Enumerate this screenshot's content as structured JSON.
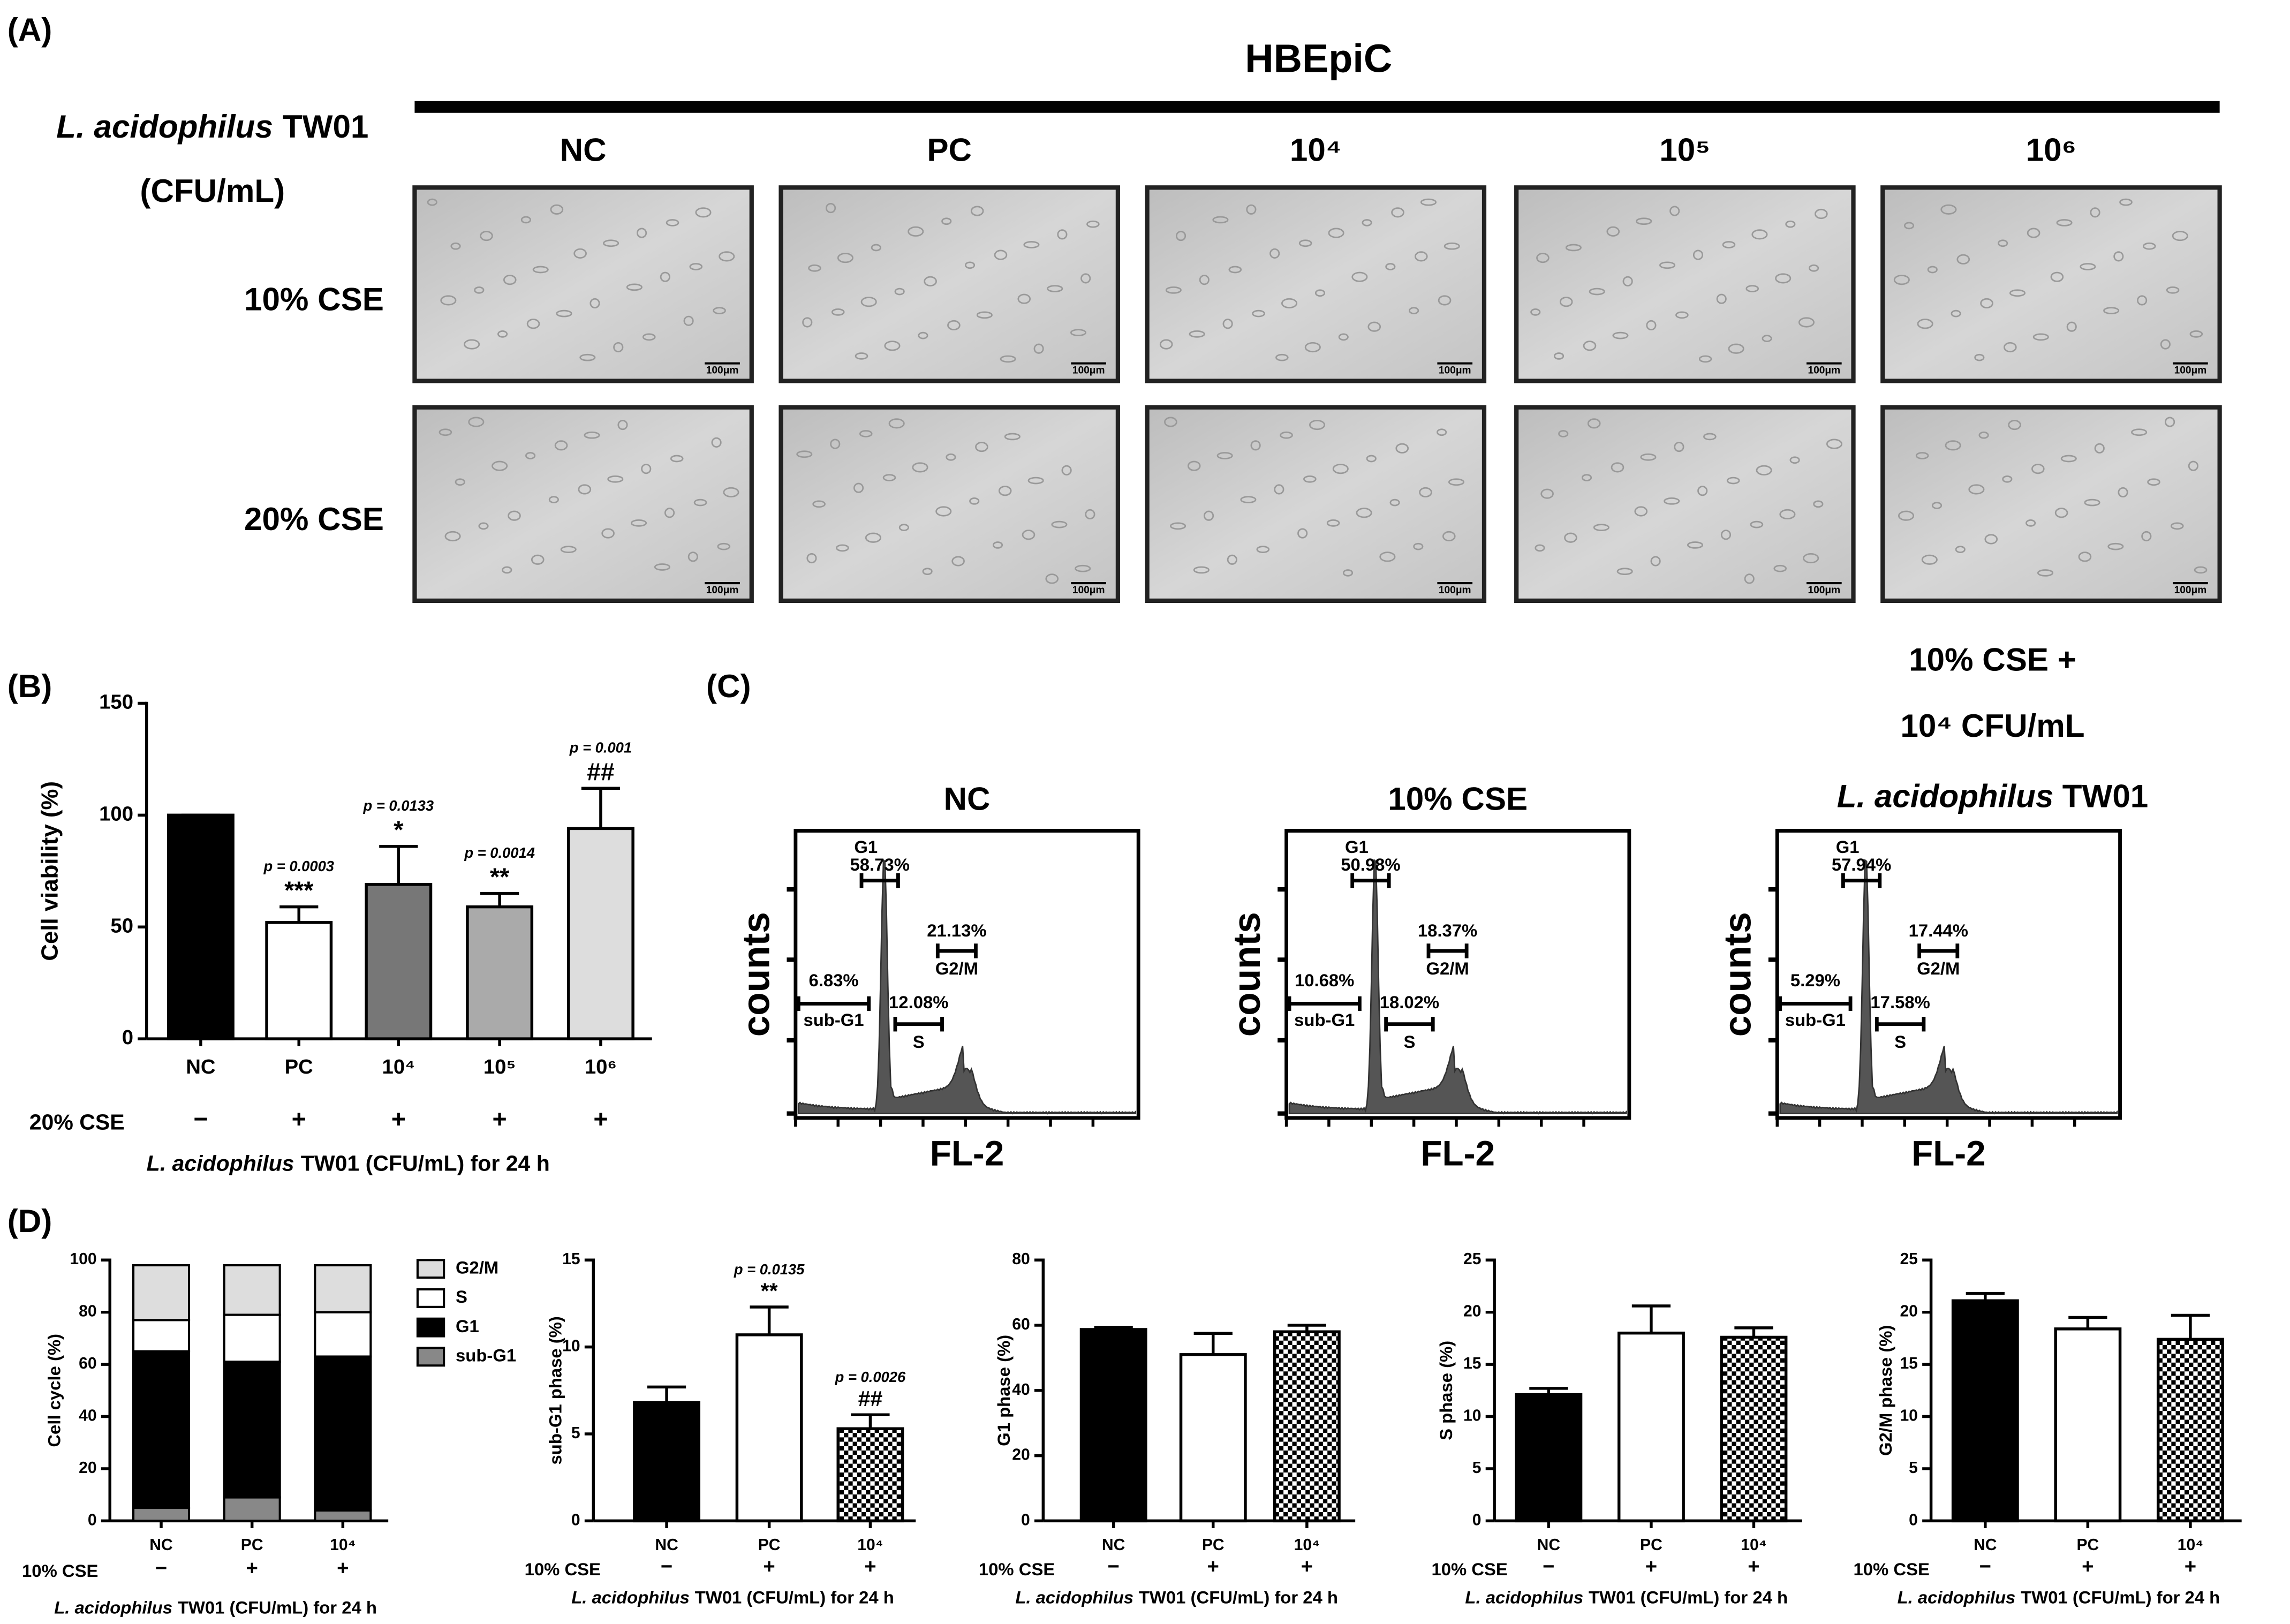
{
  "panel_labels": [
    "(A)",
    "(B)",
    "(C)",
    "(D)"
  ],
  "micrographs": {
    "title": "HBEpiC",
    "row_header": [
      "L. acidophilus",
      "TW01"
    ],
    "unit": "(CFU/mL)",
    "columns": [
      "NC",
      "PC",
      "10⁴",
      "10⁵",
      "10⁶"
    ],
    "rows": [
      "10% CSE",
      "20% CSE"
    ],
    "scale_bars": [
      "100μm",
      "100μm",
      "100μm",
      "100μm",
      "100μm",
      "100μm",
      "100μm",
      "100μm",
      "100μm",
      "100μm"
    ]
  },
  "chart_data": [
    {
      "type": "bar",
      "ylabel": "Cell viability (%)",
      "categories": [
        "NC",
        "PC",
        "10⁴",
        "10⁵",
        "10⁶"
      ],
      "values": [
        100,
        52,
        69,
        59,
        94
      ],
      "errors": [
        0,
        7,
        17,
        6,
        18
      ],
      "fills": [
        "#000000",
        "#ffffff",
        "#777777",
        "#aaaaaa",
        "#dddddd"
      ],
      "ylim": [
        0,
        150
      ],
      "yticks": [
        0,
        50,
        100,
        150
      ],
      "p_labels": [
        null,
        "p = 0.0003",
        "p = 0.0133",
        "p = 0.0014",
        "p = 0.001"
      ],
      "sig_labels": [
        null,
        "***",
        "*",
        "**",
        "##"
      ],
      "row_label": "20% CSE",
      "row_signs": [
        "−",
        "+",
        "+",
        "+",
        "+"
      ],
      "xlabel": [
        "L. acidophilus",
        "TW01 (CFU/mL) for 24 h"
      ]
    },
    {
      "type": "cytometry",
      "title": "NC",
      "ylabel": "counts",
      "xlabel": "FL-2",
      "gates": [
        {
          "name": "G1",
          "label": "58.73%"
        },
        {
          "name": "sub-G1",
          "label": "6.83%"
        },
        {
          "name": "S",
          "label": "12.08%"
        },
        {
          "name": "G2/M",
          "label": "21.13%"
        }
      ]
    },
    {
      "type": "cytometry",
      "title": "10%  CSE",
      "ylabel": "counts",
      "xlabel": "FL-2",
      "gates": [
        {
          "name": "G1",
          "label": "50.98%"
        },
        {
          "name": "sub-G1",
          "label": "10.68%"
        },
        {
          "name": "S",
          "label": "18.02%"
        },
        {
          "name": "G2/M",
          "label": "18.37%"
        }
      ]
    },
    {
      "type": "cytometry",
      "title_lines": [
        "10% CSE +",
        "10⁴ CFU/mL"
      ],
      "title_italic": "L. acidophilus",
      "title_rest": "TW01",
      "ylabel": "counts",
      "xlabel": "FL-2",
      "gates": [
        {
          "name": "G1",
          "label": "57.94%"
        },
        {
          "name": "sub-G1",
          "label": "5.29%"
        },
        {
          "name": "S",
          "label": "17.58%"
        },
        {
          "name": "G2/M",
          "label": "17.44%"
        }
      ]
    },
    {
      "type": "stacked",
      "ylabel": "Cell cycle (%)",
      "categories": [
        "NC",
        "PC",
        "10⁴"
      ],
      "series": [
        {
          "name": "sub-G1",
          "color": "#888888",
          "values": [
            5,
            9,
            4
          ]
        },
        {
          "name": "G1",
          "color": "#000000",
          "values": [
            60,
            52,
            59
          ]
        },
        {
          "name": "S",
          "color": "#ffffff",
          "values": [
            12,
            18,
            17
          ]
        },
        {
          "name": "G2/M",
          "color": "#dddddd",
          "values": [
            21,
            19,
            18
          ]
        }
      ],
      "ylim": [
        0,
        100
      ],
      "yticks": [
        0,
        20,
        40,
        60,
        80,
        100
      ],
      "row_label": "10% CSE",
      "row_signs": [
        "−",
        "+",
        "+"
      ],
      "xlabel": [
        "L. acidophilus",
        "TW01 (CFU/mL) for 24 h"
      ]
    },
    {
      "type": "bar",
      "ylabel": "sub-G1 phase (%)",
      "categories": [
        "NC",
        "PC",
        "10⁴"
      ],
      "values": [
        6.8,
        10.7,
        5.3
      ],
      "errors": [
        0.9,
        1.6,
        0.8
      ],
      "fills": [
        "#000000",
        "#ffffff",
        "checkerboard"
      ],
      "ylim": [
        0,
        15
      ],
      "yticks": [
        0,
        5,
        10,
        15
      ],
      "p_labels": [
        null,
        "p = 0.0135",
        "p = 0.0026"
      ],
      "sig_labels": [
        null,
        "**",
        "##"
      ],
      "row_label": "10% CSE",
      "row_signs": [
        "−",
        "+",
        "+"
      ],
      "xlabel": [
        "L. acidophilus",
        "TW01 (CFU/mL) for 24 h"
      ]
    },
    {
      "type": "bar",
      "ylabel": "G1 phase (%)",
      "categories": [
        "NC",
        "PC",
        "10⁴"
      ],
      "values": [
        58.7,
        51,
        58
      ],
      "errors": [
        0.7,
        6.5,
        2
      ],
      "fills": [
        "#000000",
        "#ffffff",
        "checkerboard"
      ],
      "ylim": [
        0,
        80
      ],
      "yticks": [
        0,
        20,
        40,
        60,
        80
      ],
      "row_label": "10% CSE",
      "row_signs": [
        "−",
        "+",
        "+"
      ],
      "xlabel": [
        "L. acidophilus",
        "TW01 (CFU/mL) for 24 h"
      ]
    },
    {
      "type": "bar",
      "ylabel": "S phase (%)",
      "categories": [
        "NC",
        "PC",
        "10⁴"
      ],
      "values": [
        12.1,
        18,
        17.6
      ],
      "errors": [
        0.6,
        2.6,
        0.9
      ],
      "fills": [
        "#000000",
        "#ffffff",
        "checkerboard"
      ],
      "ylim": [
        0,
        25
      ],
      "yticks": [
        0,
        5,
        10,
        15,
        20,
        25
      ],
      "row_label": "10% CSE",
      "row_signs": [
        "−",
        "+",
        "+"
      ],
      "xlabel": [
        "L. acidophilus",
        "TW01 (CFU/mL) for 24 h"
      ]
    },
    {
      "type": "bar",
      "ylabel": "G2/M phase (%)",
      "categories": [
        "NC",
        "PC",
        "10⁴"
      ],
      "values": [
        21.1,
        18.4,
        17.4
      ],
      "errors": [
        0.7,
        1.1,
        2.3
      ],
      "fills": [
        "#000000",
        "#ffffff",
        "checkerboard"
      ],
      "ylim": [
        0,
        25
      ],
      "yticks": [
        0,
        5,
        10,
        15,
        20,
        25
      ],
      "row_label": "10% CSE",
      "row_signs": [
        "−",
        "+",
        "+"
      ],
      "xlabel": [
        "L. acidophilus",
        "TW01 (CFU/mL) for 24 h"
      ]
    }
  ]
}
